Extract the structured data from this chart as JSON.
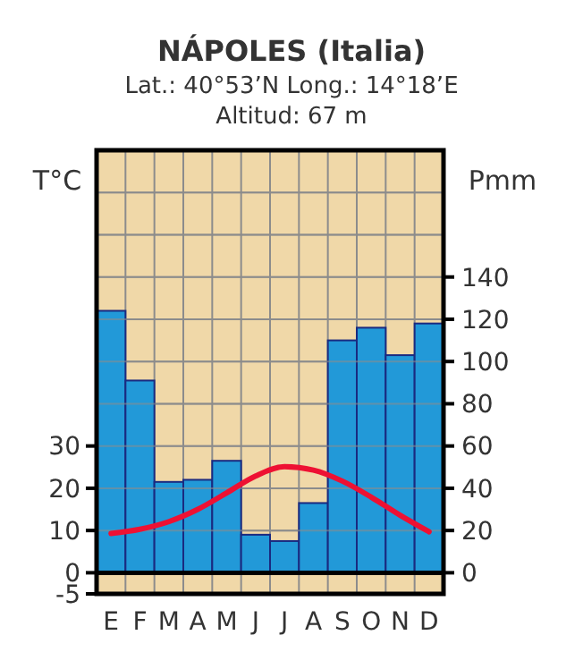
{
  "chart_data": {
    "type": "bar",
    "title": "NÁPOLES (Italia)",
    "subtitle": "Lat.: 40°53’N  Long.: 14°18’E\nAltitud: 67 m",
    "ylabel": "T°C",
    "y2label": "Pmm",
    "categories": [
      "E",
      "F",
      "M",
      "A",
      "M",
      "J",
      "J",
      "A",
      "S",
      "O",
      "N",
      "D"
    ],
    "series": [
      {
        "axis": "y2",
        "color": "#2299d8",
        "values": [
          124,
          91,
          43,
          44,
          53,
          18,
          15,
          33,
          110,
          116,
          103,
          118
        ]
      },
      {
        "type": "line",
        "axis": "y",
        "color": "#ee1133",
        "values": [
          9.3,
          10.3,
          12.1,
          15,
          18.9,
          22.9,
          25.1,
          24.3,
          21.7,
          17.9,
          13.6,
          9.7
        ]
      }
    ],
    "ylim": [
      -5,
      100
    ],
    "yticks": [
      -5,
      0,
      10,
      20,
      30,
      {
        "value": 40,
        "label": null
      },
      {
        "value": 50,
        "label": null
      },
      {
        "value": 60,
        "label": null
      },
      {
        "value": 70,
        "label": null
      },
      {
        "value": 80,
        "label": null
      },
      {
        "value": 90,
        "label": null
      },
      {
        "value": 100,
        "label": null
      }
    ],
    "y2lim": [
      -10,
      200
    ],
    "y2ticks": [
      0,
      20,
      40,
      60,
      80,
      100,
      120,
      140
    ],
    "ref_lines": [
      {
        "axis": "y",
        "value": 0,
        "color": "#000000"
      }
    ],
    "grid": true,
    "marker": "none",
    "line_style": "solid"
  }
}
